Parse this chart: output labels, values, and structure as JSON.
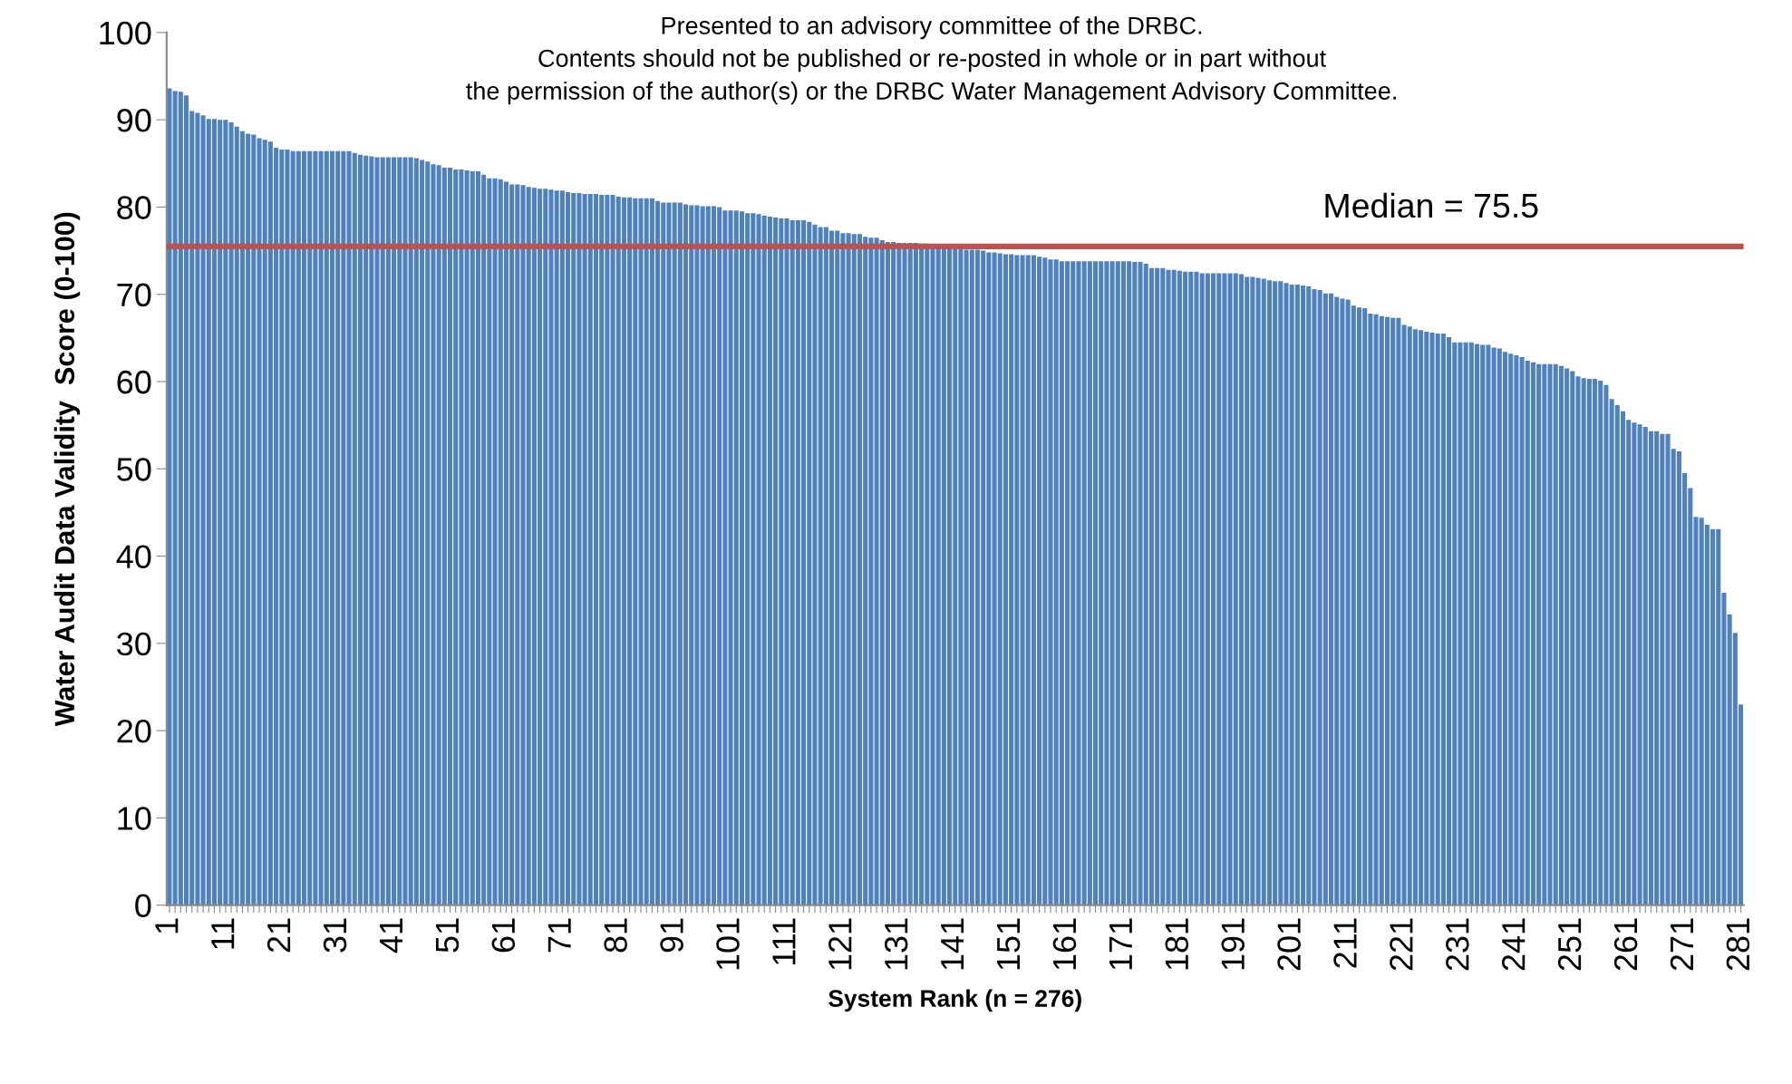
{
  "chart_data": {
    "type": "bar",
    "xlabel": "System Rank (n = 276)",
    "ylabel": "Water Audit Data Validity  Score (0-100)",
    "annotations": [
      "Presented to an advisory committee of the DRBC.\nContents should not be published or re-posted in whole or in part without\nthe permission of the author(s) or the DRBC Water Management Advisory Committee."
    ],
    "categories": [
      "1",
      null,
      null,
      null,
      null,
      null,
      null,
      null,
      null,
      null,
      "11",
      null,
      null,
      null,
      null,
      null,
      null,
      null,
      null,
      null,
      "21",
      null,
      null,
      null,
      null,
      null,
      null,
      null,
      null,
      null,
      "31",
      null,
      null,
      null,
      null,
      null,
      null,
      null,
      null,
      null,
      "41",
      null,
      null,
      null,
      null,
      null,
      null,
      null,
      null,
      null,
      "51",
      null,
      null,
      null,
      null,
      null,
      null,
      null,
      null,
      null,
      "61",
      null,
      null,
      null,
      null,
      null,
      null,
      null,
      null,
      null,
      "71",
      null,
      null,
      null,
      null,
      null,
      null,
      null,
      null,
      null,
      "81",
      null,
      null,
      null,
      null,
      null,
      null,
      null,
      null,
      null,
      "91",
      null,
      null,
      null,
      null,
      null,
      null,
      null,
      null,
      null,
      "101",
      null,
      null,
      null,
      null,
      null,
      null,
      null,
      null,
      null,
      "111",
      null,
      null,
      null,
      null,
      null,
      null,
      null,
      null,
      null,
      "121",
      null,
      null,
      null,
      null,
      null,
      null,
      null,
      null,
      null,
      "131",
      null,
      null,
      null,
      null,
      null,
      null,
      null,
      null,
      null,
      "141",
      null,
      null,
      null,
      null,
      null,
      null,
      null,
      null,
      null,
      "151",
      null,
      null,
      null,
      null,
      null,
      null,
      null,
      null,
      null,
      "161",
      null,
      null,
      null,
      null,
      null,
      null,
      null,
      null,
      null,
      "171",
      null,
      null,
      null,
      null,
      null,
      null,
      null,
      null,
      null,
      "181",
      null,
      null,
      null,
      null,
      null,
      null,
      null,
      null,
      null,
      "191",
      null,
      null,
      null,
      null,
      null,
      null,
      null,
      null,
      null,
      "201",
      null,
      null,
      null,
      null,
      null,
      null,
      null,
      null,
      null,
      "211",
      null,
      null,
      null,
      null,
      null,
      null,
      null,
      null,
      null,
      "221",
      null,
      null,
      null,
      null,
      null,
      null,
      null,
      null,
      null,
      "231",
      null,
      null,
      null,
      null,
      null,
      null,
      null,
      null,
      null,
      "241",
      null,
      null,
      null,
      null,
      null,
      null,
      null,
      null,
      null,
      "251",
      null,
      null,
      null,
      null,
      null,
      null,
      null,
      null,
      null,
      "261",
      null,
      null,
      null,
      null,
      null,
      null,
      null,
      null,
      null,
      "271",
      null,
      null,
      null,
      null,
      null,
      null,
      null,
      null,
      null,
      "281"
    ],
    "values": [
      93.6,
      93.3,
      93.2,
      92.8,
      91.0,
      90.8,
      90.5,
      90.1,
      90.1,
      90.0,
      90.0,
      89.7,
      89.2,
      88.7,
      88.4,
      88.3,
      87.9,
      87.7,
      87.5,
      86.8,
      86.6,
      86.6,
      86.4,
      86.4,
      86.4,
      86.4,
      86.4,
      86.4,
      86.4,
      86.4,
      86.4,
      86.4,
      86.4,
      86.2,
      86.0,
      85.9,
      85.8,
      85.7,
      85.7,
      85.7,
      85.7,
      85.7,
      85.7,
      85.7,
      85.6,
      85.4,
      85.2,
      84.9,
      84.8,
      84.5,
      84.5,
      84.3,
      84.3,
      84.2,
      84.1,
      84.1,
      83.7,
      83.3,
      83.3,
      83.2,
      82.9,
      82.6,
      82.6,
      82.5,
      82.3,
      82.2,
      82.1,
      82.1,
      82.0,
      81.9,
      81.9,
      81.7,
      81.6,
      81.6,
      81.5,
      81.5,
      81.5,
      81.4,
      81.4,
      81.4,
      81.2,
      81.1,
      81.1,
      81.0,
      81.0,
      81.0,
      81.0,
      80.7,
      80.5,
      80.5,
      80.5,
      80.5,
      80.3,
      80.2,
      80.2,
      80.1,
      80.1,
      80.1,
      80.0,
      79.6,
      79.6,
      79.6,
      79.5,
      79.3,
      79.3,
      79.2,
      79.0,
      78.9,
      78.8,
      78.7,
      78.7,
      78.5,
      78.5,
      78.5,
      78.3,
      78.0,
      77.7,
      77.7,
      77.3,
      77.3,
      77.0,
      77.0,
      76.9,
      76.9,
      76.6,
      76.5,
      76.5,
      76.2,
      76.0,
      76.0,
      75.9,
      75.9,
      75.9,
      75.9,
      75.8,
      75.8,
      75.7,
      75.7,
      75.6,
      75.6,
      75.5,
      75.5,
      75.1,
      75.1,
      75.1,
      75.0,
      74.8,
      74.8,
      74.7,
      74.6,
      74.6,
      74.5,
      74.5,
      74.5,
      74.5,
      74.3,
      74.2,
      74.0,
      74.0,
      73.8,
      73.8,
      73.8,
      73.8,
      73.8,
      73.8,
      73.8,
      73.8,
      73.8,
      73.8,
      73.8,
      73.8,
      73.8,
      73.7,
      73.7,
      73.5,
      73.0,
      73.0,
      73.0,
      72.8,
      72.8,
      72.7,
      72.6,
      72.6,
      72.6,
      72.4,
      72.4,
      72.4,
      72.4,
      72.4,
      72.4,
      72.4,
      72.3,
      72.0,
      72.0,
      71.9,
      71.8,
      71.6,
      71.5,
      71.5,
      71.3,
      71.1,
      71.1,
      71.0,
      70.9,
      70.6,
      70.5,
      70.1,
      70.1,
      69.7,
      69.5,
      69.4,
      68.7,
      68.5,
      68.4,
      67.8,
      67.7,
      67.5,
      67.4,
      67.3,
      67.3,
      66.5,
      66.3,
      66.0,
      65.9,
      65.7,
      65.6,
      65.5,
      65.5,
      65.1,
      64.5,
      64.5,
      64.5,
      64.5,
      64.3,
      64.2,
      64.2,
      63.9,
      63.8,
      63.4,
      63.2,
      63.0,
      62.8,
      62.4,
      62.2,
      62.0,
      62.0,
      62.0,
      62.0,
      61.8,
      61.5,
      61.2,
      60.6,
      60.4,
      60.3,
      60.3,
      60.1,
      59.6,
      58.0,
      57.3,
      56.6,
      55.6,
      55.3,
      55.1,
      54.8,
      54.3,
      54.3,
      54.0,
      54.0,
      52.3,
      52.0,
      49.5,
      47.8,
      44.5,
      44.4,
      43.6,
      43.1,
      43.1,
      35.8,
      33.3,
      31.2,
      23.0
    ],
    "color": "#4f81bd",
    "ylim": [
      0,
      100
    ],
    "yticks": [
      0,
      10,
      20,
      30,
      40,
      50,
      60,
      70,
      80,
      90,
      100
    ],
    "ref_lines": [
      {
        "axis": "y",
        "value": 75.5,
        "label": "Median = 75.5",
        "color": "#c0504d"
      }
    ],
    "grid": false,
    "legend": false
  }
}
